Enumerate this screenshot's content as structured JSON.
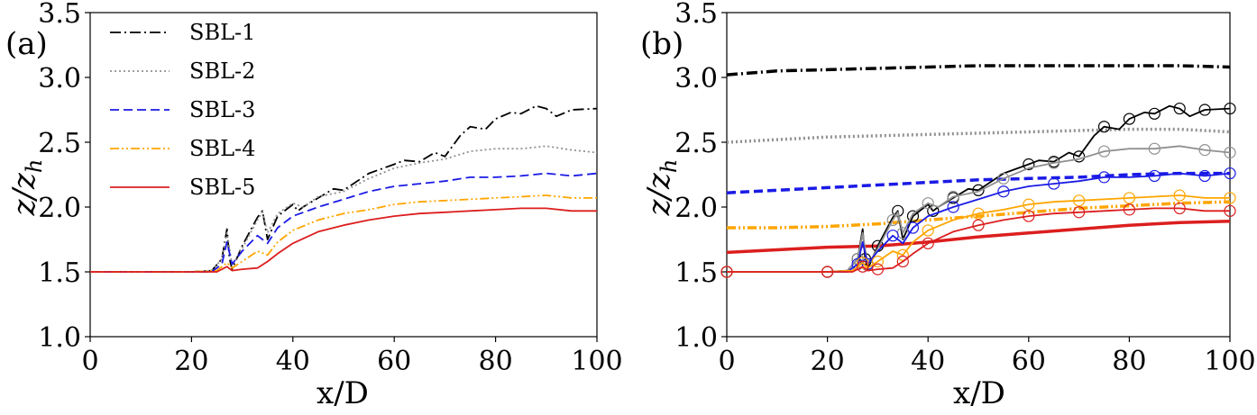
{
  "panels": [
    {
      "label": "(a)",
      "xlabel": "x/D",
      "ylabel": "z/z_h"
    },
    {
      "label": "(b)",
      "xlabel": "x/D",
      "ylabel": "z/z_h"
    }
  ],
  "legend": [
    "SBL-1",
    "SBL-2",
    "SBL-3",
    "SBL-4",
    "SBL-5"
  ],
  "chart_data": [
    {
      "type": "line",
      "panel": "(a)",
      "xlabel": "x/D",
      "ylabel": "z/zh",
      "xlim": [
        0,
        100
      ],
      "ylim": [
        1.0,
        3.5
      ],
      "xticks": [
        "0",
        "20",
        "40",
        "60",
        "80",
        "100"
      ],
      "yticks": [
        "1.0",
        "1.5",
        "2.0",
        "2.5",
        "3.0",
        "3.5"
      ],
      "legend_position": "top-left",
      "series": [
        {
          "name": "SBL-1",
          "color": "#000000",
          "dash": "dashdot",
          "x": [
            0,
            10,
            20,
            24,
            26,
            27,
            27.5,
            28,
            30,
            33,
            34,
            35,
            37,
            40,
            41,
            42,
            45,
            48,
            50,
            55,
            60,
            62,
            65,
            68,
            70,
            73,
            75,
            78,
            80,
            83,
            85,
            88,
            90,
            92,
            95,
            100
          ],
          "y": [
            1.5,
            1.5,
            1.5,
            1.51,
            1.6,
            1.83,
            1.6,
            1.52,
            1.7,
            1.92,
            1.97,
            1.75,
            1.93,
            2.02,
            1.97,
            2.0,
            2.07,
            2.14,
            2.13,
            2.26,
            2.33,
            2.36,
            2.35,
            2.42,
            2.39,
            2.55,
            2.62,
            2.6,
            2.68,
            2.73,
            2.72,
            2.78,
            2.76,
            2.7,
            2.75,
            2.76
          ]
        },
        {
          "name": "SBL-2",
          "color": "#909090",
          "dash": "dotted",
          "x": [
            0,
            10,
            20,
            24,
            26,
            27,
            28,
            30,
            33,
            34,
            35,
            37,
            40,
            42,
            45,
            50,
            55,
            60,
            65,
            70,
            75,
            80,
            85,
            90,
            95,
            100
          ],
          "y": [
            1.5,
            1.5,
            1.5,
            1.51,
            1.6,
            1.8,
            1.55,
            1.68,
            1.9,
            1.96,
            1.8,
            1.95,
            2.03,
            2.0,
            2.08,
            2.12,
            2.22,
            2.3,
            2.34,
            2.37,
            2.43,
            2.45,
            2.45,
            2.47,
            2.44,
            2.42
          ]
        },
        {
          "name": "SBL-3",
          "color": "#1a1ae6",
          "dash": "dashed",
          "x": [
            0,
            10,
            20,
            24,
            26,
            27,
            28,
            30,
            33,
            35,
            37,
            40,
            45,
            50,
            55,
            60,
            65,
            70,
            75,
            80,
            85,
            90,
            95,
            100
          ],
          "y": [
            1.5,
            1.5,
            1.5,
            1.5,
            1.56,
            1.73,
            1.56,
            1.66,
            1.78,
            1.72,
            1.84,
            1.93,
            2.0,
            2.06,
            2.12,
            2.16,
            2.18,
            2.2,
            2.23,
            2.23,
            2.24,
            2.26,
            2.24,
            2.26
          ]
        },
        {
          "name": "SBL-4",
          "color": "#ffa500",
          "dash": "dashdotdot",
          "x": [
            0,
            10,
            20,
            25,
            27,
            28,
            30,
            33,
            35,
            37,
            40,
            45,
            50,
            55,
            60,
            65,
            70,
            75,
            80,
            85,
            90,
            95,
            100
          ],
          "y": [
            1.5,
            1.5,
            1.5,
            1.51,
            1.57,
            1.53,
            1.58,
            1.66,
            1.63,
            1.73,
            1.82,
            1.9,
            1.95,
            1.98,
            2.02,
            2.04,
            2.05,
            2.06,
            2.07,
            2.08,
            2.09,
            2.07,
            2.07
          ]
        },
        {
          "name": "SBL-5",
          "color": "#dc1e1e",
          "dash": "solid",
          "x": [
            0,
            10,
            20,
            25,
            27,
            28,
            30,
            33,
            35,
            37,
            40,
            45,
            50,
            55,
            60,
            65,
            70,
            75,
            80,
            85,
            90,
            95,
            100
          ],
          "y": [
            1.5,
            1.5,
            1.5,
            1.5,
            1.54,
            1.51,
            1.52,
            1.53,
            1.58,
            1.64,
            1.72,
            1.81,
            1.86,
            1.9,
            1.93,
            1.95,
            1.96,
            1.97,
            1.98,
            1.99,
            1.99,
            1.97,
            1.97
          ]
        }
      ]
    },
    {
      "type": "line",
      "panel": "(b)",
      "xlabel": "x/D",
      "ylabel": "z/zh",
      "xlim": [
        0,
        100
      ],
      "ylim": [
        1.0,
        3.5
      ],
      "xticks": [
        "0",
        "20",
        "40",
        "60",
        "80",
        "100"
      ],
      "yticks": [
        "1.0",
        "1.5",
        "2.0",
        "2.5",
        "3.0",
        "3.5"
      ],
      "series": [
        {
          "name": "SBL-1",
          "color": "#000000",
          "dash": "dashdot",
          "width": 3.5,
          "x": [
            0,
            10,
            20,
            30,
            40,
            50,
            60,
            70,
            80,
            90,
            100
          ],
          "y": [
            3.02,
            3.05,
            3.06,
            3.07,
            3.08,
            3.09,
            3.09,
            3.09,
            3.09,
            3.09,
            3.08
          ]
        },
        {
          "name": "SBL-2",
          "color": "#909090",
          "dash": "dotted",
          "width": 3.5,
          "x": [
            0,
            10,
            20,
            30,
            40,
            50,
            60,
            70,
            80,
            90,
            100
          ],
          "y": [
            2.5,
            2.52,
            2.54,
            2.55,
            2.56,
            2.57,
            2.58,
            2.59,
            2.6,
            2.6,
            2.58
          ]
        },
        {
          "name": "SBL-3",
          "color": "#1a1ae6",
          "dash": "dashed",
          "width": 3.5,
          "x": [
            0,
            10,
            20,
            30,
            40,
            50,
            60,
            70,
            80,
            90,
            100
          ],
          "y": [
            2.11,
            2.13,
            2.15,
            2.17,
            2.19,
            2.21,
            2.22,
            2.23,
            2.25,
            2.26,
            2.26
          ]
        },
        {
          "name": "SBL-4",
          "color": "#ffa500",
          "dash": "dashdotdot",
          "width": 3.5,
          "x": [
            0,
            10,
            20,
            30,
            40,
            50,
            60,
            70,
            80,
            90,
            100
          ],
          "y": [
            1.84,
            1.84,
            1.85,
            1.87,
            1.9,
            1.93,
            1.96,
            1.99,
            2.01,
            2.03,
            2.04
          ]
        },
        {
          "name": "SBL-5",
          "color": "#dc1e1e",
          "dash": "solid",
          "width": 3.5,
          "x": [
            0,
            10,
            20,
            30,
            40,
            50,
            60,
            70,
            80,
            90,
            100
          ],
          "y": [
            1.65,
            1.67,
            1.69,
            1.7,
            1.73,
            1.77,
            1.8,
            1.83,
            1.86,
            1.88,
            1.89
          ]
        },
        {
          "name": "SBL-1",
          "color": "#000000",
          "dash": "solid",
          "markers": true,
          "x": [
            0,
            10,
            20,
            24,
            26,
            27,
            27.5,
            28,
            30,
            33,
            34,
            35,
            37,
            40,
            41,
            42,
            45,
            48,
            50,
            55,
            60,
            62,
            65,
            68,
            70,
            73,
            75,
            78,
            80,
            83,
            85,
            88,
            90,
            92,
            95,
            100
          ],
          "y": [
            1.5,
            1.5,
            1.5,
            1.51,
            1.6,
            1.83,
            1.6,
            1.52,
            1.7,
            1.92,
            1.97,
            1.75,
            1.93,
            2.02,
            1.97,
            2.0,
            2.07,
            2.14,
            2.13,
            2.26,
            2.33,
            2.36,
            2.35,
            2.42,
            2.39,
            2.55,
            2.62,
            2.6,
            2.68,
            2.73,
            2.72,
            2.78,
            2.76,
            2.7,
            2.75,
            2.76
          ]
        },
        {
          "name": "SBL-2",
          "color": "#909090",
          "dash": "solid",
          "markers": true,
          "x": [
            0,
            10,
            20,
            24,
            26,
            27,
            28,
            30,
            33,
            34,
            35,
            37,
            40,
            42,
            45,
            50,
            55,
            60,
            65,
            70,
            75,
            80,
            85,
            90,
            95,
            100
          ],
          "y": [
            1.5,
            1.5,
            1.5,
            1.51,
            1.6,
            1.8,
            1.55,
            1.68,
            1.9,
            1.96,
            1.8,
            1.95,
            2.03,
            2.0,
            2.08,
            2.12,
            2.22,
            2.3,
            2.34,
            2.37,
            2.43,
            2.45,
            2.45,
            2.47,
            2.44,
            2.42
          ]
        },
        {
          "name": "SBL-3",
          "color": "#1a1ae6",
          "dash": "solid",
          "markers": true,
          "x": [
            0,
            10,
            20,
            24,
            26,
            27,
            28,
            30,
            33,
            35,
            37,
            40,
            45,
            50,
            55,
            60,
            65,
            70,
            75,
            80,
            85,
            90,
            95,
            100
          ],
          "y": [
            1.5,
            1.5,
            1.5,
            1.5,
            1.56,
            1.73,
            1.56,
            1.66,
            1.78,
            1.72,
            1.84,
            1.93,
            2.0,
            2.06,
            2.12,
            2.16,
            2.18,
            2.2,
            2.23,
            2.23,
            2.24,
            2.26,
            2.24,
            2.26
          ]
        },
        {
          "name": "SBL-4",
          "color": "#ffa500",
          "dash": "solid",
          "markers": true,
          "x": [
            0,
            10,
            20,
            25,
            27,
            28,
            30,
            33,
            35,
            37,
            40,
            45,
            50,
            55,
            60,
            65,
            70,
            75,
            80,
            85,
            90,
            95,
            100
          ],
          "y": [
            1.5,
            1.5,
            1.5,
            1.51,
            1.57,
            1.53,
            1.58,
            1.66,
            1.63,
            1.73,
            1.82,
            1.9,
            1.95,
            1.98,
            2.02,
            2.04,
            2.05,
            2.06,
            2.07,
            2.08,
            2.09,
            2.07,
            2.07
          ]
        },
        {
          "name": "SBL-5",
          "color": "#dc1e1e",
          "dash": "solid",
          "markers": true,
          "x": [
            0,
            10,
            20,
            25,
            27,
            28,
            30,
            33,
            35,
            37,
            40,
            45,
            50,
            55,
            60,
            65,
            70,
            75,
            80,
            85,
            90,
            95,
            100
          ],
          "y": [
            1.5,
            1.5,
            1.5,
            1.5,
            1.54,
            1.51,
            1.52,
            1.53,
            1.58,
            1.64,
            1.72,
            1.81,
            1.86,
            1.9,
            1.93,
            1.95,
            1.96,
            1.97,
            1.98,
            1.99,
            1.99,
            1.97,
            1.97
          ]
        }
      ]
    }
  ]
}
